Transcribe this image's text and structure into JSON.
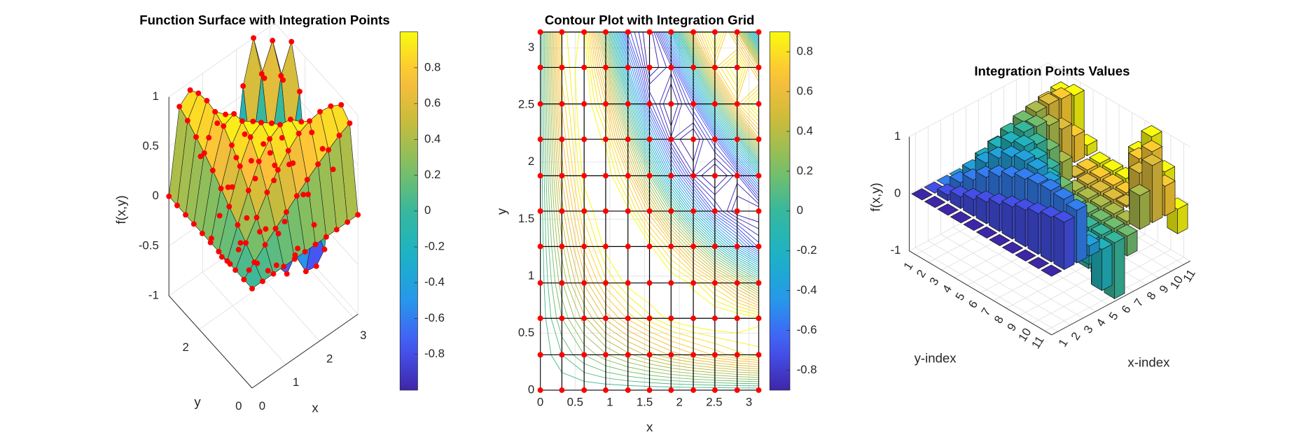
{
  "chart_data": [
    {
      "type": "surface",
      "title": "Function Surface with Integration Points",
      "xlabel": "x",
      "ylabel": "y",
      "zlabel": "f(x,y)",
      "x": [
        0,
        0.31,
        0.63,
        0.94,
        1.26,
        1.57,
        1.88,
        2.2,
        2.51,
        2.83,
        3.14
      ],
      "y": [
        0,
        0.31,
        0.63,
        0.94,
        1.26,
        1.57,
        1.88,
        2.2,
        2.51,
        2.83,
        3.14
      ],
      "z": [
        [
          0,
          0,
          0,
          0,
          0,
          0,
          0,
          0,
          0,
          0,
          0
        ],
        [
          0,
          0.1,
          0.2,
          0.29,
          0.38,
          0.47,
          0.56,
          0.64,
          0.71,
          0.78,
          0.83
        ],
        [
          0,
          0.2,
          0.38,
          0.56,
          0.71,
          0.83,
          0.93,
          0.98,
          1.0,
          0.98,
          0.92
        ],
        [
          0,
          0.29,
          0.56,
          0.78,
          0.93,
          1.0,
          0.98,
          0.88,
          0.7,
          0.46,
          0.18
        ],
        [
          0,
          0.38,
          0.71,
          0.93,
          1.0,
          0.92,
          0.7,
          0.37,
          -0.02,
          -0.4,
          -0.72
        ],
        [
          0,
          0.47,
          0.83,
          1.0,
          0.92,
          0.62,
          0.18,
          -0.31,
          -0.72,
          -0.96,
          -0.98
        ],
        [
          0,
          0.56,
          0.93,
          0.98,
          0.7,
          0.18,
          -0.4,
          -0.84,
          -1.0,
          -0.82,
          -0.35
        ],
        [
          0,
          0.64,
          0.98,
          0.88,
          0.37,
          -0.31,
          -0.84,
          -0.99,
          -0.69,
          -0.07,
          0.59
        ],
        [
          0,
          0.71,
          1.0,
          0.7,
          -0.02,
          -0.72,
          -1.0,
          -0.69,
          0.03,
          0.73,
          1.0
        ],
        [
          0,
          0.78,
          0.98,
          0.46,
          -0.4,
          -0.96,
          -0.82,
          -0.07,
          0.73,
          0.99,
          0.52
        ],
        [
          0,
          0.83,
          0.92,
          0.18,
          -0.72,
          -0.98,
          -0.35,
          0.59,
          1.0,
          0.52,
          -0.43
        ]
      ],
      "xlim": [
        0,
        3.1416
      ],
      "ylim": [
        0,
        3.1416
      ],
      "zlim": [
        -1,
        1
      ],
      "xticks": [
        0,
        1,
        2,
        3
      ],
      "yticks": [
        0,
        2
      ],
      "zticks": [
        -1,
        -0.5,
        0,
        0.5,
        1
      ],
      "colormap": "parula",
      "point_color": "#ff0000",
      "grid": true,
      "colorbar": {
        "clim": [
          -1,
          1
        ],
        "ticks": [
          -0.8,
          -0.6,
          -0.4,
          -0.2,
          0,
          0.2,
          0.4,
          0.6,
          0.8
        ]
      }
    },
    {
      "type": "contour",
      "title": "Contour Plot with Integration Grid",
      "xlabel": "x",
      "ylabel": "y",
      "xlim": [
        0,
        3.1416
      ],
      "ylim": [
        0,
        3.1416
      ],
      "xticks": [
        0,
        0.5,
        1,
        1.5,
        2,
        2.5,
        3
      ],
      "yticks": [
        0,
        0.5,
        1,
        1.5,
        2,
        2.5,
        3
      ],
      "levels": [
        -0.9,
        -0.85,
        -0.8,
        -0.75,
        -0.7,
        -0.65,
        -0.6,
        -0.55,
        -0.5,
        -0.45,
        -0.4,
        -0.35,
        -0.3,
        -0.25,
        -0.2,
        -0.15,
        -0.1,
        -0.05,
        0,
        0.05,
        0.1,
        0.15,
        0.2,
        0.25,
        0.3,
        0.35,
        0.4,
        0.45,
        0.5,
        0.55,
        0.6,
        0.65,
        0.7,
        0.75,
        0.8,
        0.85,
        0.9
      ],
      "colormap": "parula",
      "point_color": "#ff0000",
      "grid_color": "#000000",
      "grid": true,
      "colorbar": {
        "clim": [
          -0.9,
          0.9
        ],
        "ticks": [
          -0.8,
          -0.6,
          -0.4,
          -0.2,
          0,
          0.2,
          0.4,
          0.6,
          0.8
        ]
      }
    },
    {
      "type": "bar3",
      "title": "Integration Points Values",
      "xlabel": "x-index",
      "ylabel": "y-index",
      "zlabel": "f(x,y)",
      "xlim": [
        0.5,
        11.5
      ],
      "ylim": [
        0.5,
        11.5
      ],
      "zlim": [
        -1,
        1
      ],
      "xticks": [
        1,
        2,
        3,
        4,
        5,
        6,
        7,
        8,
        9,
        10,
        11
      ],
      "yticks": [
        1,
        2,
        3,
        4,
        5,
        6,
        7,
        8,
        9,
        10,
        11
      ],
      "zticks": [
        -1,
        0,
        1
      ],
      "colormap": "parula",
      "grid": true
    }
  ]
}
